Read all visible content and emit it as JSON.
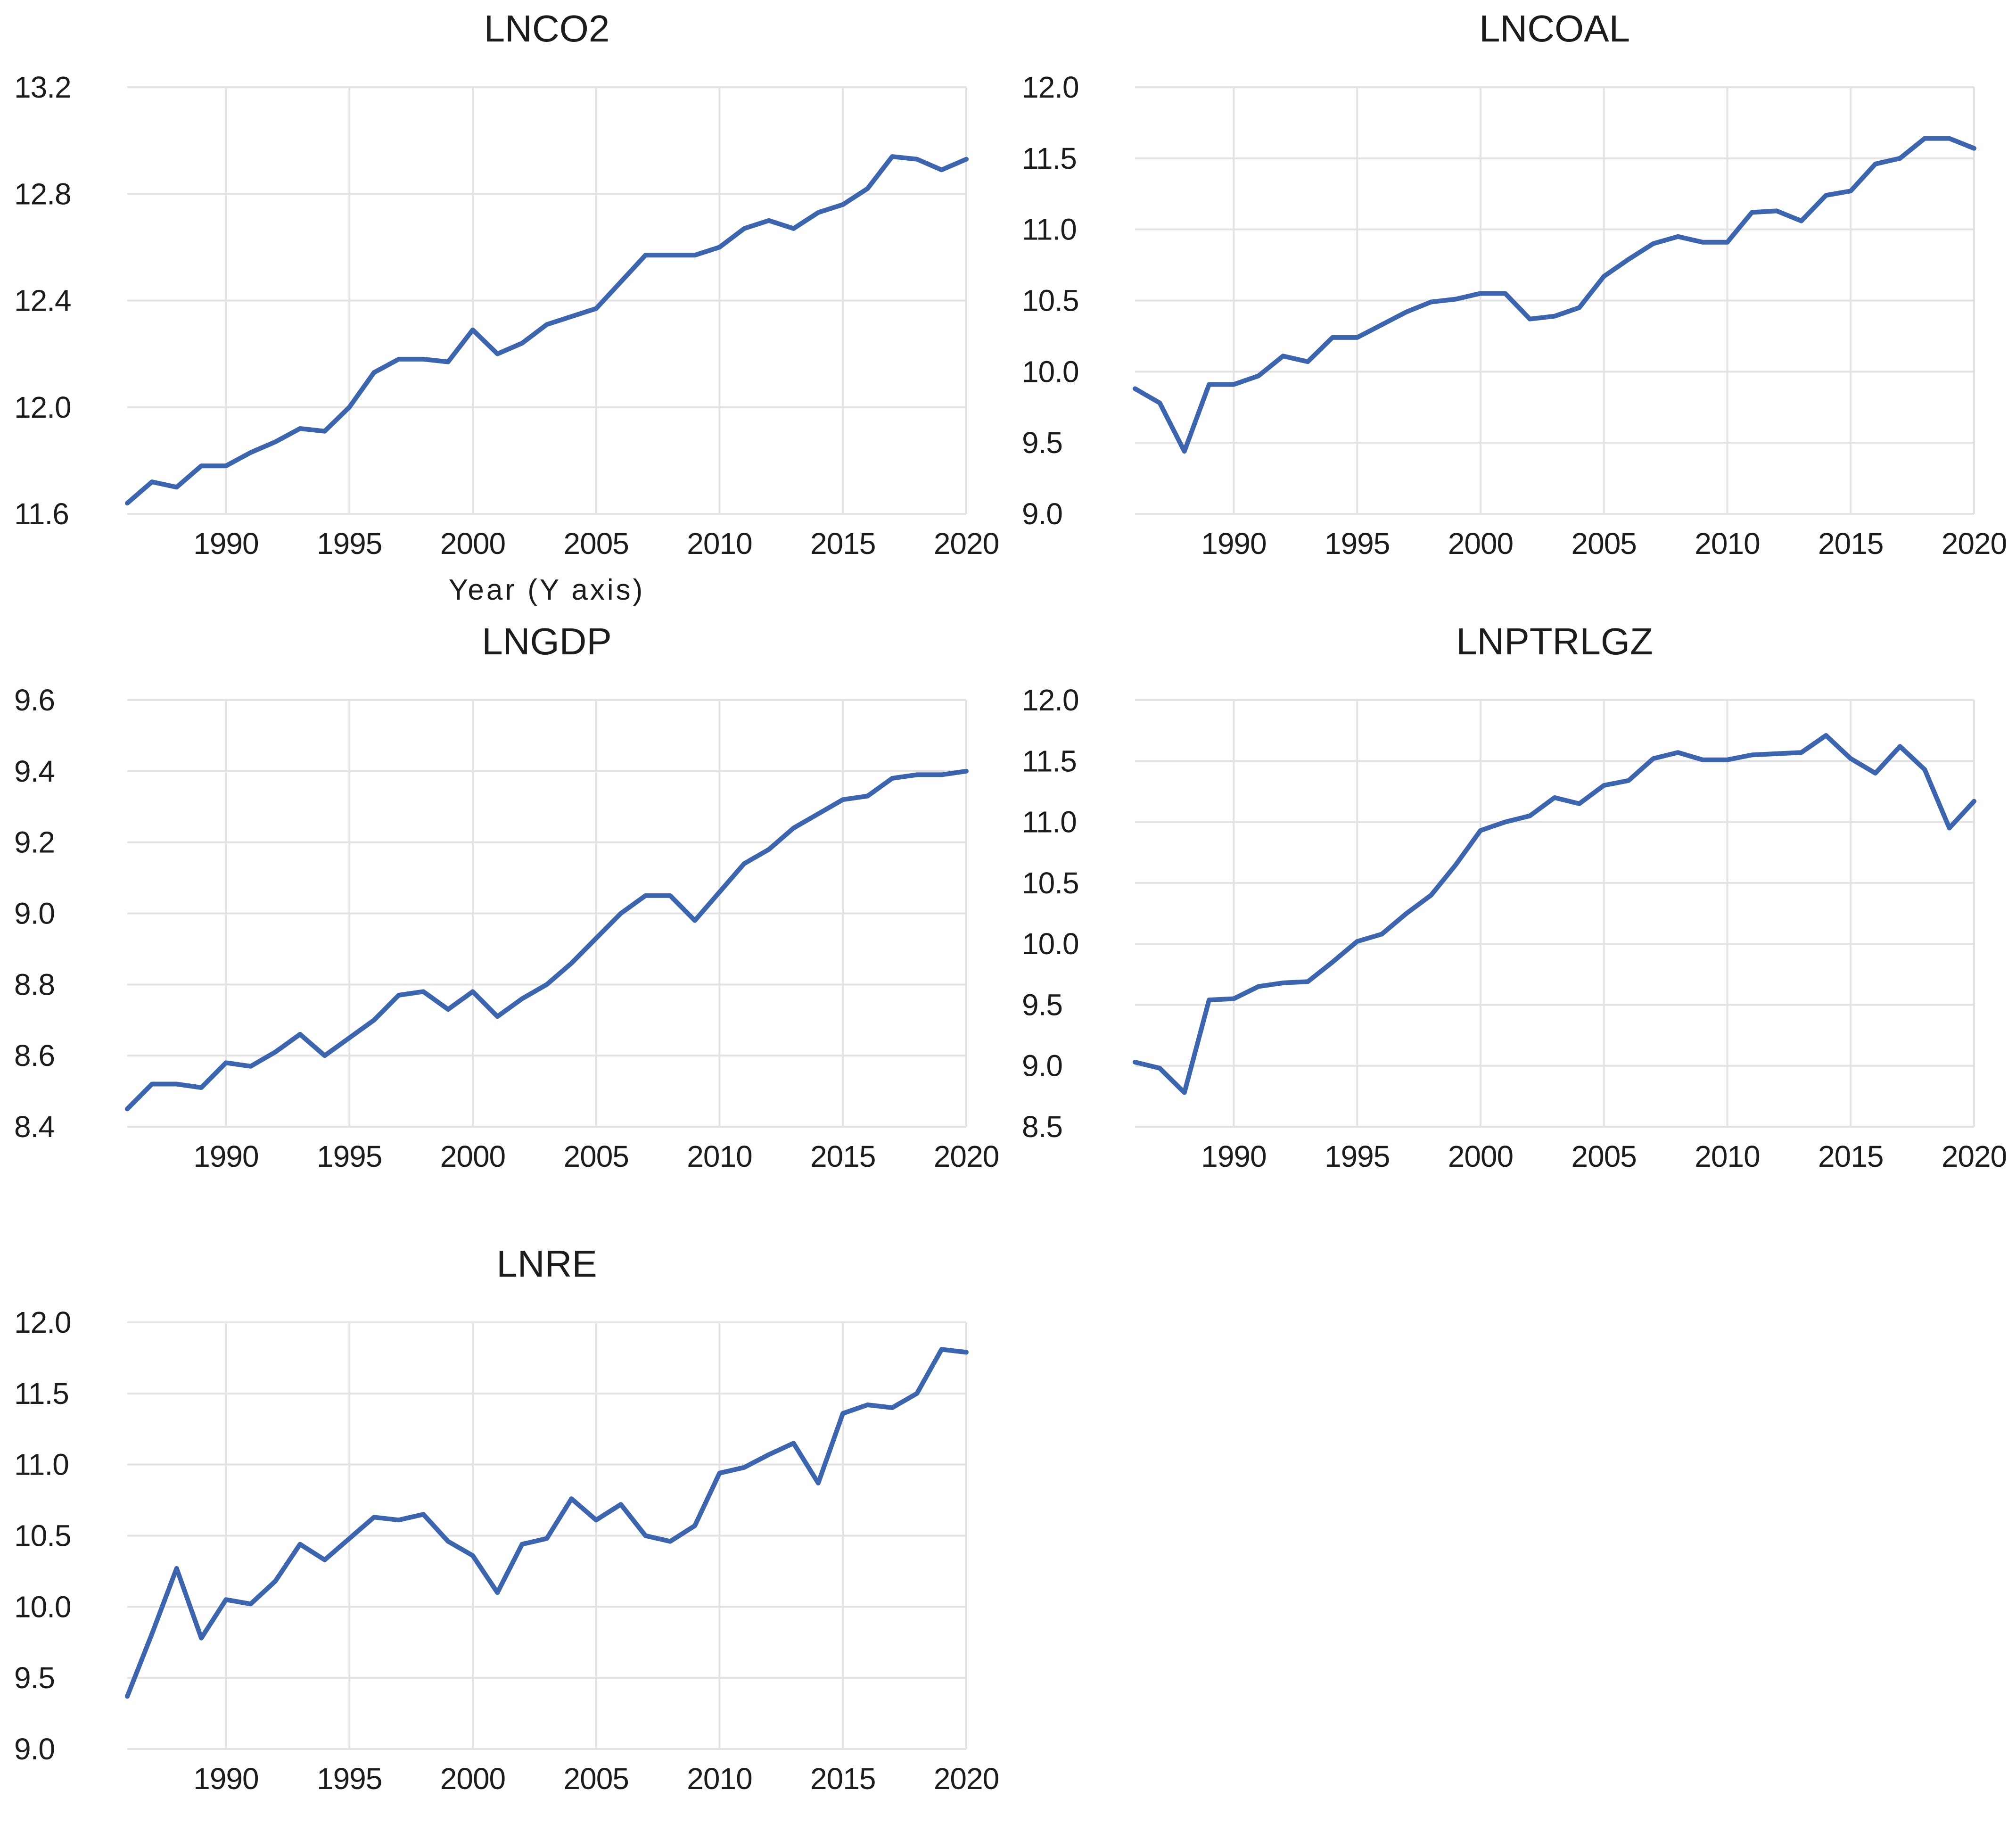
{
  "style": {
    "background": "#ffffff",
    "line_color": "#3d65ae",
    "grid_color": "#e3e3e3",
    "text_color": "#1c1c1c"
  },
  "years": [
    1986,
    1987,
    1988,
    1989,
    1990,
    1991,
    1992,
    1993,
    1994,
    1995,
    1996,
    1997,
    1998,
    1999,
    2000,
    2001,
    2002,
    2003,
    2004,
    2005,
    2006,
    2007,
    2008,
    2009,
    2010,
    2011,
    2012,
    2013,
    2014,
    2015,
    2016,
    2017,
    2018,
    2019,
    2020
  ],
  "x_ticks": [
    {
      "v": 1990,
      "label": "1990"
    },
    {
      "v": 1995,
      "label": "1995"
    },
    {
      "v": 2000,
      "label": "2000"
    },
    {
      "v": 2005,
      "label": "2005"
    },
    {
      "v": 2010,
      "label": "2010"
    },
    {
      "v": 2015,
      "label": "2015"
    },
    {
      "v": 2020,
      "label": "2020"
    }
  ],
  "chart_data": [
    {
      "type": "line",
      "id": "lnco2",
      "title": "LNCO2",
      "xlabel": "Year (Y axis)",
      "ylim": [
        11.6,
        13.2
      ],
      "grid": true,
      "legend": "none",
      "y_ticks": [
        {
          "v": 13.2,
          "label": "13.2"
        },
        {
          "v": 12.8,
          "label": "12.8"
        },
        {
          "v": 12.4,
          "label": "12.4"
        },
        {
          "v": 12.0,
          "label": "12.0"
        },
        {
          "v": 11.6,
          "label": "11.6"
        }
      ],
      "x": [
        1986,
        1987,
        1988,
        1989,
        1990,
        1991,
        1992,
        1993,
        1994,
        1995,
        1996,
        1997,
        1998,
        1999,
        2000,
        2001,
        2002,
        2003,
        2004,
        2005,
        2006,
        2007,
        2008,
        2009,
        2010,
        2011,
        2012,
        2013,
        2014,
        2015,
        2016,
        2017,
        2018,
        2019,
        2020
      ],
      "values": [
        11.64,
        11.72,
        11.7,
        11.78,
        11.78,
        11.83,
        11.87,
        11.92,
        11.91,
        12.0,
        12.13,
        12.18,
        12.18,
        12.17,
        12.29,
        12.2,
        12.24,
        12.31,
        12.34,
        12.37,
        12.47,
        12.57,
        12.57,
        12.57,
        12.6,
        12.67,
        12.7,
        12.67,
        12.73,
        12.76,
        12.82,
        12.94,
        12.93,
        12.89,
        12.93
      ]
    },
    {
      "type": "line",
      "id": "lncoal",
      "title": "LNCOAL",
      "xlabel": "",
      "ylim": [
        9.0,
        12.0
      ],
      "grid": true,
      "legend": "none",
      "y_ticks": [
        {
          "v": 12.0,
          "label": "12.0"
        },
        {
          "v": 11.5,
          "label": "11.5"
        },
        {
          "v": 11.0,
          "label": "11.0"
        },
        {
          "v": 10.5,
          "label": "10.5"
        },
        {
          "v": 10.0,
          "label": "10.0"
        },
        {
          "v": 9.5,
          "label": "9.5"
        },
        {
          "v": 9.0,
          "label": "9.0"
        }
      ],
      "x": [
        1986,
        1987,
        1988,
        1989,
        1990,
        1991,
        1992,
        1993,
        1994,
        1995,
        1996,
        1997,
        1998,
        1999,
        2000,
        2001,
        2002,
        2003,
        2004,
        2005,
        2006,
        2007,
        2008,
        2009,
        2010,
        2011,
        2012,
        2013,
        2014,
        2015,
        2016,
        2017,
        2018,
        2019,
        2020
      ],
      "values": [
        9.88,
        9.78,
        9.44,
        9.91,
        9.91,
        9.97,
        10.11,
        10.07,
        10.24,
        10.24,
        10.33,
        10.42,
        10.49,
        10.51,
        10.55,
        10.55,
        10.37,
        10.39,
        10.45,
        10.67,
        10.79,
        10.9,
        10.95,
        10.91,
        10.91,
        11.12,
        11.13,
        11.06,
        11.24,
        11.27,
        11.46,
        11.5,
        11.64,
        11.64,
        11.57
      ]
    },
    {
      "type": "line",
      "id": "lngdp",
      "title": "LNGDP",
      "xlabel": "",
      "ylim": [
        8.4,
        9.6
      ],
      "grid": true,
      "legend": "none",
      "y_ticks": [
        {
          "v": 9.6,
          "label": "9.6"
        },
        {
          "v": 9.4,
          "label": "9.4"
        },
        {
          "v": 9.2,
          "label": "9.2"
        },
        {
          "v": 9.0,
          "label": "9.0"
        },
        {
          "v": 8.8,
          "label": "8.8"
        },
        {
          "v": 8.6,
          "label": "8.6"
        },
        {
          "v": 8.4,
          "label": "8.4"
        }
      ],
      "x": [
        1986,
        1987,
        1988,
        1989,
        1990,
        1991,
        1992,
        1993,
        1994,
        1995,
        1996,
        1997,
        1998,
        1999,
        2000,
        2001,
        2002,
        2003,
        2004,
        2005,
        2006,
        2007,
        2008,
        2009,
        2010,
        2011,
        2012,
        2013,
        2014,
        2015,
        2016,
        2017,
        2018,
        2019,
        2020
      ],
      "values": [
        8.45,
        8.52,
        8.52,
        8.51,
        8.58,
        8.57,
        8.61,
        8.66,
        8.6,
        8.65,
        8.7,
        8.77,
        8.78,
        8.73,
        8.78,
        8.71,
        8.76,
        8.8,
        8.86,
        8.93,
        9.0,
        9.05,
        9.05,
        8.98,
        9.06,
        9.14,
        9.18,
        9.24,
        9.28,
        9.32,
        9.33,
        9.38,
        9.39,
        9.39,
        9.4
      ]
    },
    {
      "type": "line",
      "id": "lnptrlgz",
      "title": "LNPTRLGZ",
      "xlabel": "",
      "ylim": [
        8.5,
        12.0
      ],
      "grid": true,
      "legend": "none",
      "y_ticks": [
        {
          "v": 12.0,
          "label": "12.0"
        },
        {
          "v": 11.5,
          "label": "11.5"
        },
        {
          "v": 11.0,
          "label": "11.0"
        },
        {
          "v": 10.5,
          "label": "10.5"
        },
        {
          "v": 10.0,
          "label": "10.0"
        },
        {
          "v": 9.5,
          "label": "9.5"
        },
        {
          "v": 9.0,
          "label": "9.0"
        },
        {
          "v": 8.5,
          "label": "8.5"
        }
      ],
      "x": [
        1986,
        1987,
        1988,
        1989,
        1990,
        1991,
        1992,
        1993,
        1994,
        1995,
        1996,
        1997,
        1998,
        1999,
        2000,
        2001,
        2002,
        2003,
        2004,
        2005,
        2006,
        2007,
        2008,
        2009,
        2010,
        2011,
        2012,
        2013,
        2014,
        2015,
        2016,
        2017,
        2018,
        2019,
        2020
      ],
      "values": [
        9.03,
        8.98,
        8.78,
        9.54,
        9.55,
        9.65,
        9.68,
        9.69,
        9.85,
        10.02,
        10.08,
        10.25,
        10.4,
        10.65,
        10.93,
        11.0,
        11.05,
        11.2,
        11.15,
        11.3,
        11.34,
        11.52,
        11.57,
        11.51,
        11.51,
        11.55,
        11.56,
        11.57,
        11.71,
        11.52,
        11.4,
        11.62,
        11.43,
        10.95,
        11.17
      ]
    },
    {
      "type": "line",
      "id": "lnre",
      "title": "LNRE",
      "xlabel": "",
      "ylim": [
        9.0,
        12.0
      ],
      "grid": true,
      "legend": "none",
      "y_ticks": [
        {
          "v": 12.0,
          "label": "12.0"
        },
        {
          "v": 11.5,
          "label": "11.5"
        },
        {
          "v": 11.0,
          "label": "11.0"
        },
        {
          "v": 10.5,
          "label": "10.5"
        },
        {
          "v": 10.0,
          "label": "10.0"
        },
        {
          "v": 9.5,
          "label": "9.5"
        },
        {
          "v": 9.0,
          "label": "9.0"
        }
      ],
      "x": [
        1986,
        1987,
        1988,
        1989,
        1990,
        1991,
        1992,
        1993,
        1994,
        1995,
        1996,
        1997,
        1998,
        1999,
        2000,
        2001,
        2002,
        2003,
        2004,
        2005,
        2006,
        2007,
        2008,
        2009,
        2010,
        2011,
        2012,
        2013,
        2014,
        2015,
        2016,
        2017,
        2018,
        2019,
        2020
      ],
      "values": [
        9.37,
        9.81,
        10.27,
        9.78,
        10.05,
        10.02,
        10.18,
        10.44,
        10.33,
        10.48,
        10.63,
        10.61,
        10.65,
        10.46,
        10.36,
        10.1,
        10.44,
        10.48,
        10.76,
        10.61,
        10.72,
        10.5,
        10.46,
        10.57,
        10.94,
        10.98,
        11.07,
        11.15,
        10.87,
        11.36,
        11.42,
        11.4,
        11.5,
        11.81,
        11.79
      ]
    }
  ]
}
